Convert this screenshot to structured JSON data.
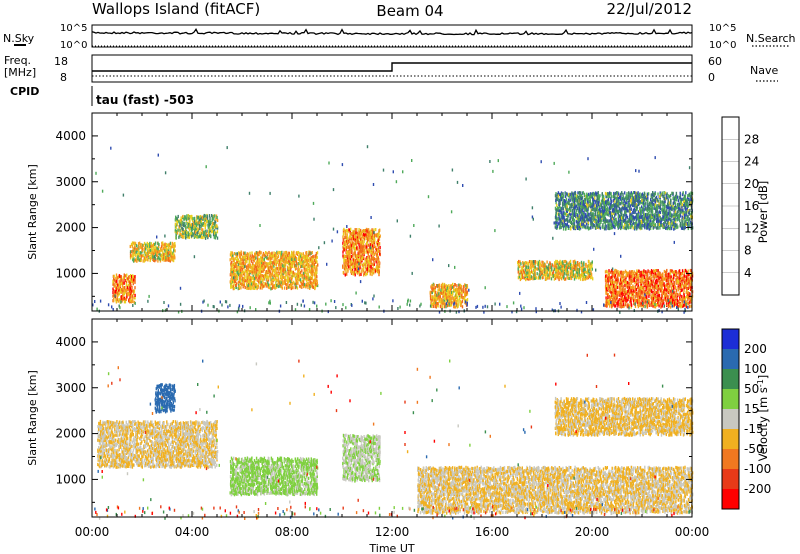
{
  "header": {
    "station": "Wallops Island (fitACF)",
    "beam": "Beam 04",
    "date": "22/Jul/2012"
  },
  "top_panels": {
    "nsky_label": "N.Sky",
    "nsearch_label": "N.Search",
    "noise_ticks": [
      "10^5",
      "10^0"
    ],
    "freq_label_1": "Freq.",
    "freq_label_2": "[MHz]",
    "freq_ticks": [
      "18",
      "8"
    ],
    "nave_label": "Nave",
    "nave_ticks": [
      "60",
      "0"
    ],
    "cpid_label": "CPID",
    "cpid_text": "tau (fast) -503"
  },
  "axes": {
    "xlabel": "Time UT",
    "ylabel": "Slant Range [km]",
    "x_ticks": [
      "00:00",
      "04:00",
      "08:00",
      "12:00",
      "16:00",
      "20:00",
      "00:00"
    ],
    "y_ticks": [
      "1000",
      "2000",
      "3000",
      "4000"
    ]
  },
  "colorbars": {
    "power": {
      "label": "Power [dB]",
      "ticks": [
        "4",
        "8",
        "12",
        "16",
        "20",
        "24",
        "28"
      ],
      "colors": [
        "#0a0aff",
        "#2f4db0",
        "#3f7f6a",
        "#4faa5a",
        "#e8d020",
        "#f5a020",
        "#f26c1a",
        "#ff0000"
      ]
    },
    "velocity": {
      "label": "Velocity [m s^-1]",
      "ticks": [
        "200",
        "100",
        "50",
        "15",
        "-15",
        "-50",
        "-100",
        "-200"
      ],
      "colors": [
        "#1c2ed6",
        "#2a6ab0",
        "#3b8f4f",
        "#7fd040",
        "#c8c8c0",
        "#f0b020",
        "#f07820",
        "#e83a18",
        "#ff0000"
      ]
    }
  },
  "chart_data": [
    {
      "type": "line",
      "panel": "noise",
      "title": "N.Sky / N.Search",
      "x": [
        "00:00",
        "04:00",
        "08:00",
        "12:00",
        "16:00",
        "20:00",
        "24:00"
      ],
      "series": [
        {
          "name": "N.Sky",
          "values": [
            1500,
            1200,
            1000,
            900,
            800,
            900,
            1300
          ]
        },
        {
          "name": "N.Search",
          "values": [
            1,
            1,
            1,
            1,
            1,
            1,
            1
          ]
        }
      ],
      "ylim": [
        1,
        100000
      ],
      "scale": "log"
    },
    {
      "type": "line",
      "panel": "freq-nave",
      "series": [
        {
          "name": "Freq.",
          "x": [
            "00:00",
            "11:59",
            "12:00",
            "24:00"
          ],
          "values": [
            12.5,
            12.5,
            15.5,
            15.5
          ]
        },
        {
          "name": "Nave",
          "x": [
            "00:00",
            "24:00"
          ],
          "values": [
            14,
            14
          ]
        }
      ],
      "ylim_freq": [
        8,
        18
      ],
      "ylim_nave": [
        0,
        60
      ]
    },
    {
      "type": "heatmap",
      "panel": "power",
      "title": "Power [dB]",
      "xlabel": "Time UT",
      "ylabel": "Slant Range [km]",
      "xlim": [
        0,
        24
      ],
      "ylim": [
        180,
        4500
      ],
      "clim": [
        0,
        30
      ],
      "regions": [
        {
          "t0": 1.5,
          "t1": 3.3,
          "r0": 1300,
          "r1": 1700,
          "power": 18
        },
        {
          "t0": 3.3,
          "t1": 5.0,
          "r0": 1800,
          "r1": 2300,
          "power": 14
        },
        {
          "t0": 0.8,
          "t1": 1.7,
          "r0": 400,
          "r1": 1000,
          "power": 22
        },
        {
          "t0": 5.5,
          "t1": 9.0,
          "r0": 700,
          "r1": 1500,
          "power": 20
        },
        {
          "t0": 10.0,
          "t1": 11.5,
          "r0": 1000,
          "r1": 2000,
          "power": 22
        },
        {
          "t0": 13.5,
          "t1": 15.0,
          "r0": 300,
          "r1": 800,
          "power": 20
        },
        {
          "t0": 17.0,
          "t1": 20.0,
          "r0": 900,
          "r1": 1300,
          "power": 18
        },
        {
          "t0": 20.5,
          "t1": 24.0,
          "r0": 300,
          "r1": 1100,
          "power": 24
        },
        {
          "t0": 18.5,
          "t1": 24.0,
          "r0": 2000,
          "r1": 2800,
          "power": 10
        }
      ]
    },
    {
      "type": "heatmap",
      "panel": "velocity",
      "title": "Velocity [m s^-1]",
      "xlabel": "Time UT",
      "ylabel": "Slant Range [km]",
      "xlim": [
        0,
        24
      ],
      "ylim": [
        180,
        4500
      ],
      "clim": [
        -250,
        250
      ],
      "regions": [
        {
          "t0": 0.2,
          "t1": 5.0,
          "r0": 1300,
          "r1": 2300,
          "velocity": 0
        },
        {
          "t0": 5.5,
          "t1": 9.0,
          "r0": 700,
          "r1": 1500,
          "velocity": 40
        },
        {
          "t0": 2.5,
          "t1": 3.3,
          "r0": 2500,
          "r1": 3100,
          "velocity": 180
        },
        {
          "t0": 10.0,
          "t1": 11.5,
          "r0": 1000,
          "r1": 2000,
          "velocity": 30
        },
        {
          "t0": 13.0,
          "t1": 24.0,
          "r0": 300,
          "r1": 1300,
          "velocity": 0
        },
        {
          "t0": 18.5,
          "t1": 24.0,
          "r0": 2000,
          "r1": 2800,
          "velocity": -5
        }
      ]
    }
  ]
}
